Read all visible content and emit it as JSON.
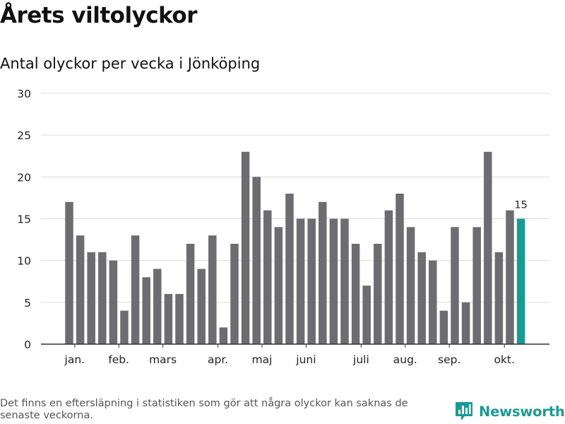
{
  "header": {
    "title": "Årets viltolyckor",
    "subtitle": "Antal olyckor per vecka i Jönköping"
  },
  "footer": {
    "note": "Det finns en eftersläpning i statistiken som gör att några olyckor kan saknas de senaste veckorna.",
    "brand": "Newsworthy",
    "brand_icon": "bar-chart-logo-icon"
  },
  "colors": {
    "bar": "#6d6d71",
    "highlight": "#1a9a93",
    "grid": "#dcdcdc",
    "axis": "#333333"
  },
  "chart_data": {
    "type": "bar",
    "title": "Antal olyckor per vecka i Jönköping",
    "xlabel": "",
    "ylabel": "",
    "ylim": [
      0,
      30
    ],
    "yticks": [
      0,
      5,
      10,
      15,
      20,
      25,
      30
    ],
    "grid": true,
    "weeks": [
      1,
      2,
      3,
      4,
      5,
      6,
      7,
      8,
      9,
      10,
      11,
      12,
      13,
      14,
      15,
      16,
      17,
      18,
      19,
      20,
      21,
      22,
      23,
      24,
      25,
      26,
      27,
      28,
      29,
      30,
      31,
      32,
      33,
      34,
      35,
      36,
      37,
      38,
      39,
      40,
      41,
      42
    ],
    "values": [
      17,
      13,
      11,
      11,
      10,
      4,
      13,
      8,
      9,
      6,
      6,
      12,
      9,
      13,
      2,
      12,
      23,
      20,
      16,
      14,
      18,
      15,
      15,
      17,
      15,
      15,
      12,
      7,
      12,
      16,
      18,
      14,
      11,
      10,
      4,
      14,
      5,
      14,
      23,
      11,
      16,
      15
    ],
    "highlight_index": 41,
    "highlight_label": "15",
    "month_labels": [
      {
        "label": "jan.",
        "at_week": 1.5
      },
      {
        "label": "feb.",
        "at_week": 5.5
      },
      {
        "label": "mars",
        "at_week": 9.5
      },
      {
        "label": "apr.",
        "at_week": 14.5
      },
      {
        "label": "maj",
        "at_week": 18.5
      },
      {
        "label": "juni",
        "at_week": 22.5
      },
      {
        "label": "juli",
        "at_week": 27.5
      },
      {
        "label": "aug.",
        "at_week": 31.5
      },
      {
        "label": "sep.",
        "at_week": 35.5
      },
      {
        "label": "okt.",
        "at_week": 40.5
      }
    ]
  }
}
